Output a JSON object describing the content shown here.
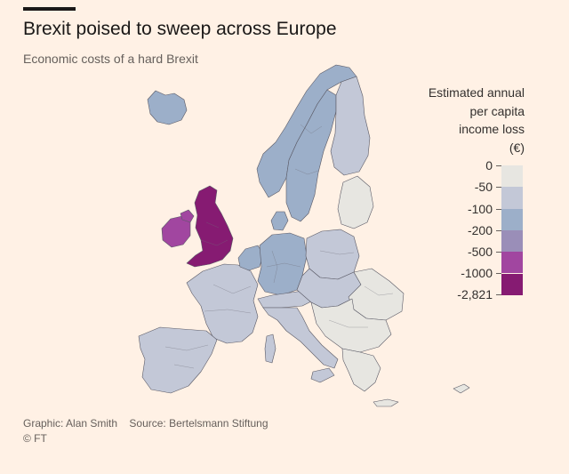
{
  "title": "Brexit poised to sweep across Europe",
  "subtitle": "Economic costs of a hard Brexit",
  "legend": {
    "title_lines": [
      "Estimated annual",
      "per capita",
      "income loss",
      "(€)"
    ],
    "ticks": [
      "0",
      "-50",
      "-100",
      "-200",
      "-500",
      "-1000",
      "-2,821"
    ],
    "bins": [
      {
        "range": "0 to -50",
        "color": "#e7e6e1"
      },
      {
        "range": "-50 to -100",
        "color": "#c3c8d7"
      },
      {
        "range": "-100 to -200",
        "color": "#9cafc9"
      },
      {
        "range": "-200 to -500",
        "color": "#9a8eb8"
      },
      {
        "range": "-500 to -1000",
        "color": "#a146a0"
      },
      {
        "range": "-1000 to -2,821",
        "color": "#861b72"
      }
    ]
  },
  "regions": [
    {
      "name": "Ireland",
      "bin": 4
    },
    {
      "name": "Great Britain",
      "bin": 5
    },
    {
      "name": "Northern Ireland",
      "bin": 4
    },
    {
      "name": "Norway",
      "bin": 2
    },
    {
      "name": "Sweden",
      "bin": 2
    },
    {
      "name": "Finland",
      "bin": 1
    },
    {
      "name": "Iceland",
      "bin": 2
    },
    {
      "name": "Denmark",
      "bin": 2
    },
    {
      "name": "Benelux",
      "bin": 2
    },
    {
      "name": "Germany",
      "bin": 2
    },
    {
      "name": "France",
      "bin": 1
    },
    {
      "name": "Iberia",
      "bin": 1
    },
    {
      "name": "Italy",
      "bin": 1
    },
    {
      "name": "Alps",
      "bin": 1
    },
    {
      "name": "Poland",
      "bin": 1
    },
    {
      "name": "Baltics",
      "bin": 0
    },
    {
      "name": "Central Europe",
      "bin": 1
    },
    {
      "name": "Balkans",
      "bin": 0
    },
    {
      "name": "Romania",
      "bin": 0
    },
    {
      "name": "Greece",
      "bin": 0
    },
    {
      "name": "Cyprus",
      "bin": 0
    }
  ],
  "source": {
    "graphic": "Graphic: Alan Smith",
    "source": "Source: Bertelsmann Stiftung",
    "copyright": "© FT"
  }
}
